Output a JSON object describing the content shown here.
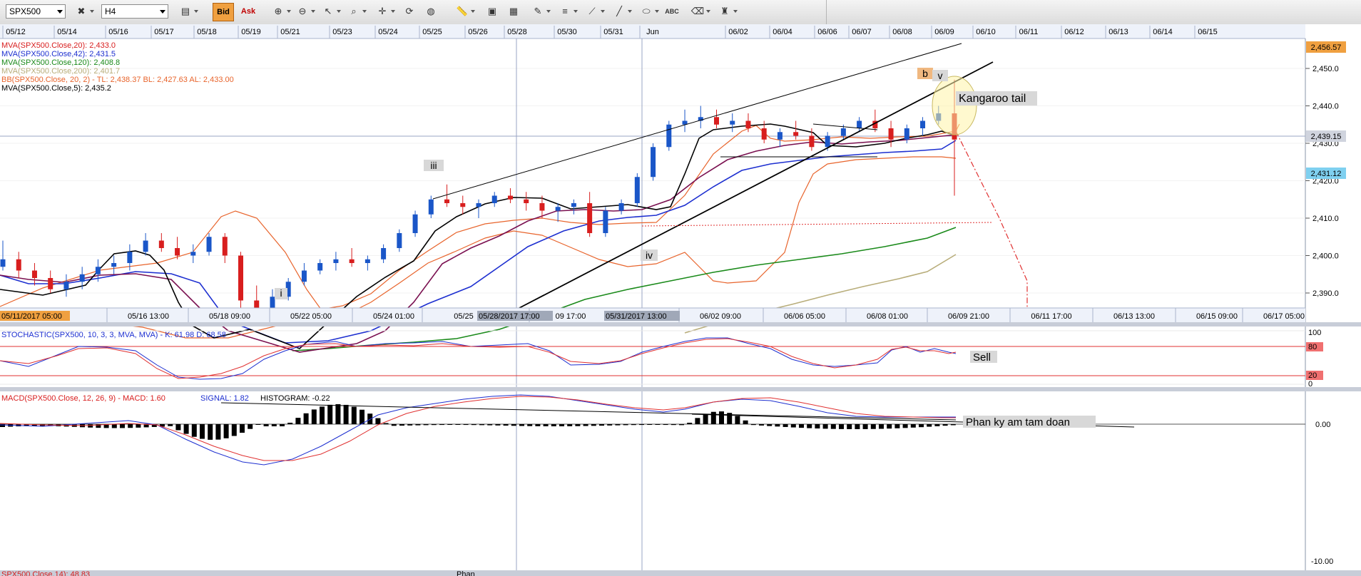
{
  "toolbar": {
    "symbol": "SPX500",
    "timeframe": "H4",
    "bid_label": "Bid",
    "ask_label": "Ask",
    "abc_label": "ABC"
  },
  "indicators": {
    "mva20": "MVA(SPX500.Close,20): 2,433.0",
    "mva42": "MVA(SPX500.Close,42): 2,431.5",
    "mva120": "MVA(SPX500.Close,120): 2,408.8",
    "mva200": "MVA(SPX500.Close,200): 2,401.7",
    "bb": "BB(SPX500.Close, 20, 2) -  TL: 2,438.37  BL: 2,427.63  AL: 2,433.00",
    "mva5": "MVA(SPX500.Close,5): 2,435.2",
    "stoch": "STOCHASTIC(SPX500, 10, 3, 3, MVA, MVA) -  K: 61.98  D: 68.58",
    "macd": "MACD(SPX500.Close, 12, 26, 9) -  MACD: 1.60",
    "signal": "SIGNAL: 1.82",
    "histogram": "HISTOGRAM: -0.22"
  },
  "top_dates": [
    "05/12",
    "05/14",
    "05/16",
    "05/17",
    "05/18",
    "05/19",
    "05/21",
    "05/23",
    "05/24",
    "05/25",
    "05/26",
    "05/28",
    "05/30",
    "05/31",
    "Jun",
    "06/02",
    "06/04",
    "06/06",
    "06/07",
    "06/08",
    "06/09",
    "06/10",
    "06/11",
    "06/12",
    "06/13",
    "06/14",
    "06/15"
  ],
  "bottom_dates": [
    "05/16 13:00",
    "05/18 09:00",
    "05/22 05:00",
    "05/24 01:00",
    "05/25",
    "09 17:00",
    "06/02 09:00",
    "06/06 05:00",
    "06/08 01:00",
    "06/09 21:00",
    "06/11 17:00",
    "06/13 13:00",
    "06/15 09:00",
    "06/17 05:00"
  ],
  "date_flags": {
    "start": "05/11/2017 05:00",
    "cursor1": "05/28/2017 17:00",
    "cursor2": "05/31/2017 13:00"
  },
  "price_ticks": [
    "2,450.0",
    "2,440.0",
    "2,430.0",
    "2,420.0",
    "2,410.0",
    "2,400.0",
    "2,390.0"
  ],
  "price_flags": {
    "high": "2,456.57",
    "crosshair": "2,439.15",
    "last": "2,431.12"
  },
  "stoch_ticks": [
    "100",
    "80",
    "20",
    "0"
  ],
  "macd_ticks": [
    "0.00",
    "-10.00"
  ],
  "annotations": {
    "wave_i": "i",
    "wave_iii": "iii",
    "wave_iv": "iv",
    "wave_v": "v",
    "wave_b": "b",
    "kangaroo": "Kangaroo tail",
    "sell": "Sell",
    "divergence": "Phan ky am tam doan",
    "bottom_cut1": "SPX500.Close,14): 48.83",
    "bottom_cut2": "Phan"
  },
  "colors": {
    "candle_up": "#1a56c8",
    "candle_down": "#d81e1e",
    "mva20": "#7a1050",
    "mva42": "#1d2fd0",
    "mva120": "#1a8a1a",
    "mva200": "#b8ad7a",
    "bollinger": "#e8642c",
    "mva5": "#000000"
  },
  "chart_data": {
    "type": "candlestick",
    "symbol": "SPX500",
    "timeframe": "H4",
    "ylim": [
      2386,
      2458
    ],
    "candles_approx": [
      [
        2397,
        2404,
        2396,
        2399
      ],
      [
        2399,
        2401,
        2394,
        2396
      ],
      [
        2396,
        2398,
        2392,
        2394
      ],
      [
        2394,
        2396,
        2390,
        2391
      ],
      [
        2391,
        2395,
        2389,
        2393
      ],
      [
        2393,
        2397,
        2391,
        2395
      ],
      [
        2395,
        2399,
        2393,
        2397
      ],
      [
        2397,
        2400,
        2395,
        2398
      ],
      [
        2398,
        2403,
        2396,
        2401
      ],
      [
        2401,
        2406,
        2400,
        2404
      ],
      [
        2404,
        2406,
        2401,
        2402
      ],
      [
        2402,
        2405,
        2399,
        2400
      ],
      [
        2400,
        2403,
        2398,
        2401
      ],
      [
        2401,
        2406,
        2400,
        2405
      ],
      [
        2405,
        2406,
        2398,
        2400
      ],
      [
        2400,
        2401,
        2385,
        2388
      ],
      [
        2388,
        2392,
        2384,
        2386
      ],
      [
        2386,
        2391,
        2385,
        2389
      ],
      [
        2389,
        2394,
        2388,
        2393
      ],
      [
        2393,
        2398,
        2392,
        2396
      ],
      [
        2396,
        2399,
        2395,
        2398
      ],
      [
        2398,
        2401,
        2396,
        2399
      ],
      [
        2399,
        2402,
        2397,
        2398
      ],
      [
        2398,
        2400,
        2396,
        2399
      ],
      [
        2399,
        2403,
        2398,
        2402
      ],
      [
        2402,
        2407,
        2401,
        2406
      ],
      [
        2406,
        2412,
        2405,
        2411
      ],
      [
        2411,
        2416,
        2410,
        2415
      ],
      [
        2415,
        2419,
        2413,
        2414
      ],
      [
        2414,
        2416,
        2411,
        2413
      ],
      [
        2413,
        2415,
        2410,
        2414
      ],
      [
        2414,
        2417,
        2413,
        2416
      ],
      [
        2416,
        2418,
        2414,
        2415
      ],
      [
        2415,
        2417,
        2412,
        2414
      ],
      [
        2414,
        2416,
        2410,
        2412
      ],
      [
        2412,
        2414,
        2409,
        2413
      ],
      [
        2413,
        2415,
        2411,
        2414
      ],
      [
        2414,
        2417,
        2405,
        2406
      ],
      [
        2406,
        2413,
        2405,
        2412
      ],
      [
        2412,
        2415,
        2411,
        2414
      ],
      [
        2414,
        2422,
        2413,
        2421
      ],
      [
        2421,
        2430,
        2420,
        2429
      ],
      [
        2429,
        2436,
        2428,
        2435
      ],
      [
        2435,
        2439,
        2433,
        2436
      ],
      [
        2436,
        2440,
        2434,
        2437
      ],
      [
        2437,
        2439,
        2434,
        2435
      ],
      [
        2435,
        2438,
        2433,
        2436
      ],
      [
        2436,
        2438,
        2433,
        2434
      ],
      [
        2434,
        2436,
        2430,
        2431
      ],
      [
        2431,
        2434,
        2429,
        2433
      ],
      [
        2433,
        2436,
        2431,
        2432
      ],
      [
        2432,
        2434,
        2428,
        2429
      ],
      [
        2429,
        2433,
        2428,
        2432
      ],
      [
        2432,
        2435,
        2431,
        2434
      ],
      [
        2434,
        2437,
        2433,
        2436
      ],
      [
        2436,
        2439,
        2433,
        2434
      ],
      [
        2434,
        2436,
        2429,
        2431
      ],
      [
        2431,
        2435,
        2430,
        2434
      ],
      [
        2434,
        2437,
        2432,
        2436
      ],
      [
        2436,
        2440,
        2435,
        2438
      ],
      [
        2438,
        2447,
        2416,
        2431
      ]
    ],
    "last_price": 2431.12,
    "stochastic": {
      "k": 61.98,
      "d": 68.58,
      "levels": [
        80,
        20
      ]
    },
    "macd": {
      "macd": 1.6,
      "signal": 1.82,
      "histogram": -0.22
    }
  }
}
